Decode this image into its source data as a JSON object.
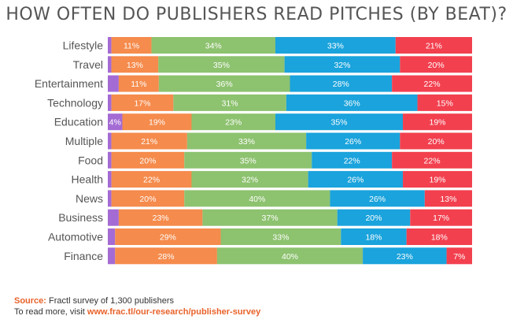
{
  "chart_data": {
    "type": "bar",
    "orientation": "horizontal",
    "stacked": true,
    "normalized": true,
    "title": "How often do publishers read pitches (by beat)?",
    "categories": [
      "Lifestyle",
      "Travel",
      "Entertainment",
      "Technology",
      "Education",
      "Multiple",
      "Food",
      "Health",
      "News",
      "Business",
      "Automotive",
      "Finance"
    ],
    "series": [
      {
        "color": "#a46bd4",
        "values": [
          1,
          1,
          3,
          1,
          4,
          1,
          1,
          1,
          1,
          3,
          2,
          2
        ]
      },
      {
        "color": "#f58b4c",
        "values": [
          11,
          13,
          11,
          17,
          19,
          21,
          20,
          22,
          20,
          23,
          29,
          28
        ]
      },
      {
        "color": "#8dc26f",
        "values": [
          34,
          35,
          36,
          31,
          23,
          33,
          35,
          32,
          40,
          37,
          33,
          40
        ]
      },
      {
        "color": "#1aa3dc",
        "values": [
          33,
          32,
          28,
          36,
          35,
          26,
          22,
          26,
          26,
          20,
          18,
          23
        ]
      },
      {
        "color": "#f2404f",
        "values": [
          21,
          20,
          22,
          15,
          19,
          20,
          22,
          19,
          13,
          17,
          18,
          7
        ]
      }
    ],
    "labels": [
      [
        "",
        "11%",
        "34%",
        "33%",
        "21%"
      ],
      [
        "",
        "13%",
        "35%",
        "32%",
        "20%"
      ],
      [
        "",
        "11%",
        "36%",
        "28%",
        "22%"
      ],
      [
        "",
        "17%",
        "31%",
        "36%",
        "15%"
      ],
      [
        "4%",
        "19%",
        "23%",
        "35%",
        "19%"
      ],
      [
        "",
        "21%",
        "33%",
        "26%",
        "20%"
      ],
      [
        "",
        "20%",
        "35%",
        "22%",
        "22%"
      ],
      [
        "",
        "22%",
        "32%",
        "26%",
        "19%"
      ],
      [
        "",
        "20%",
        "40%",
        "26%",
        "13%"
      ],
      [
        "",
        "23%",
        "37%",
        "20%",
        "17%"
      ],
      [
        "",
        "29%",
        "33%",
        "18%",
        "18%"
      ],
      [
        "",
        "28%",
        "40%",
        "23%",
        "7%"
      ]
    ],
    "legend": "none",
    "grid": false
  },
  "footer": {
    "source_label": "Source:",
    "source_text": " Fractl survey of 1,300 publishers",
    "more_text": "To read more, visit ",
    "more_link": "www.frac.tl/our-research/publisher-survey"
  }
}
